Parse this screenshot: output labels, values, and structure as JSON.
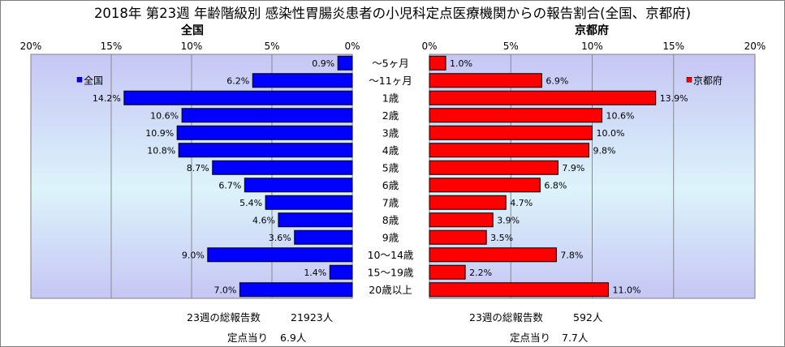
{
  "title": "2018年 第23週 年齢階級別 感染性胃腸炎患者の小児科定点医療機関からの報告割合(全国、京都府)",
  "chart_data": {
    "type": "bar",
    "orientation": "horizontal",
    "categories": [
      "～5ヶ月",
      "～11ヶ月",
      "1歳",
      "2歳",
      "3歳",
      "4歳",
      "5歳",
      "6歳",
      "7歳",
      "8歳",
      "9歳",
      "10～14歳",
      "15～19歳",
      "20歳以上"
    ],
    "xlim": [
      0,
      20
    ],
    "ticks": [
      "0%",
      "5%",
      "10%",
      "15%",
      "20%"
    ],
    "series": [
      {
        "name": "全国",
        "panel_title": "全国",
        "legend": "全国",
        "color": "#0000ff",
        "values": [
          0.9,
          6.2,
          14.2,
          10.6,
          10.9,
          10.8,
          8.7,
          6.7,
          5.4,
          4.6,
          3.6,
          9.0,
          1.4,
          7.0
        ],
        "labels": [
          "0.9%",
          "6.2%",
          "14.2%",
          "10.6%",
          "10.9%",
          "10.8%",
          "8.7%",
          "6.7%",
          "5.4%",
          "4.6%",
          "3.6%",
          "9.0%",
          "1.4%",
          "7.0%"
        ]
      },
      {
        "name": "京都府",
        "panel_title": "京都府",
        "legend": "京都府",
        "color": "#ff0000",
        "values": [
          1.0,
          6.9,
          13.9,
          10.6,
          10.0,
          9.8,
          7.9,
          6.8,
          4.7,
          3.9,
          3.5,
          7.8,
          2.2,
          11.0
        ],
        "labels": [
          "1.0%",
          "6.9%",
          "13.9%",
          "10.6%",
          "10.0%",
          "9.8%",
          "7.9%",
          "6.8%",
          "4.7%",
          "3.9%",
          "3.5%",
          "7.8%",
          "2.2%",
          "11.0%"
        ]
      }
    ],
    "grid": true
  },
  "stats": {
    "national": {
      "total_label": "23週の総報告数",
      "total_value": "21923人",
      "per_label": "定点当り",
      "per_value": "6.9人"
    },
    "kyoto": {
      "total_label": "23週の総報告数",
      "total_value": "592人",
      "per_label": "定点当り",
      "per_value": "7.7人"
    }
  }
}
